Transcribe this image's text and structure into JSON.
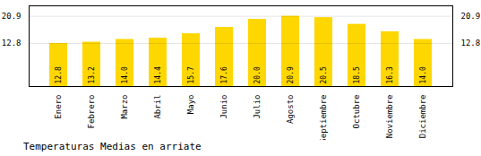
{
  "chart_data": {
    "type": "bar",
    "title": "Temperaturas Medias en arriate",
    "categories": [
      "Enero",
      "Febrero",
      "Marzo",
      "Abril",
      "Mayo",
      "Junio",
      "Julio",
      "Agosto",
      "Septiembre",
      "Octubre",
      "Noviembre",
      "Diciembre"
    ],
    "values": [
      12.8,
      13.2,
      14.0,
      14.4,
      15.7,
      17.6,
      20.0,
      20.9,
      20.5,
      18.5,
      16.3,
      14.0
    ],
    "value_labels": [
      "12.8",
      "13.2",
      "14.0",
      "14.4",
      "15.7",
      "17.6",
      "20.0",
      "20.9",
      "20.5",
      "18.5",
      "16.3",
      "14.0"
    ],
    "color": "#FFD700",
    "ylim": [
      0.0,
      24.0
    ],
    "yticks": [
      12.8,
      20.9
    ],
    "grid": true,
    "data_labels": true
  }
}
